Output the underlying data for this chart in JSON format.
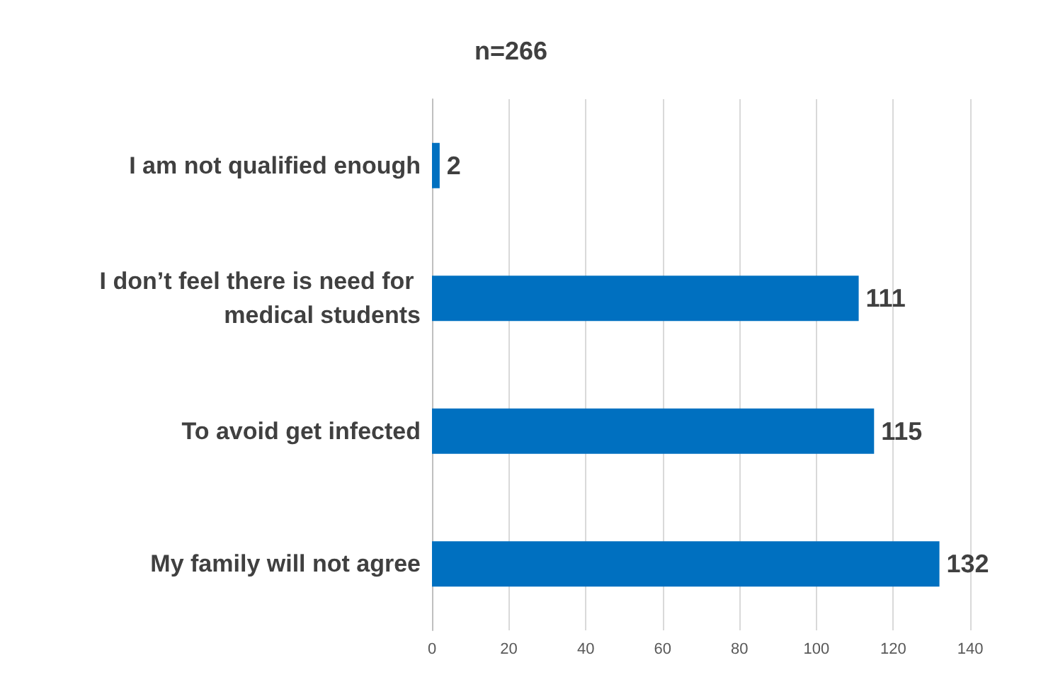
{
  "chart_data": {
    "type": "bar",
    "orientation": "horizontal",
    "title": "n=266",
    "categories": [
      "I am not qualified enough",
      "I don’t feel there is need for medical students",
      "To avoid get infected",
      "My family will not agree"
    ],
    "values": [
      2,
      111,
      115,
      132
    ],
    "color": "#0070c0",
    "xlim": [
      0,
      140
    ],
    "xticks": [
      0,
      20,
      40,
      60,
      80,
      100,
      120,
      140
    ],
    "grid": "x",
    "data_labels": true
  }
}
